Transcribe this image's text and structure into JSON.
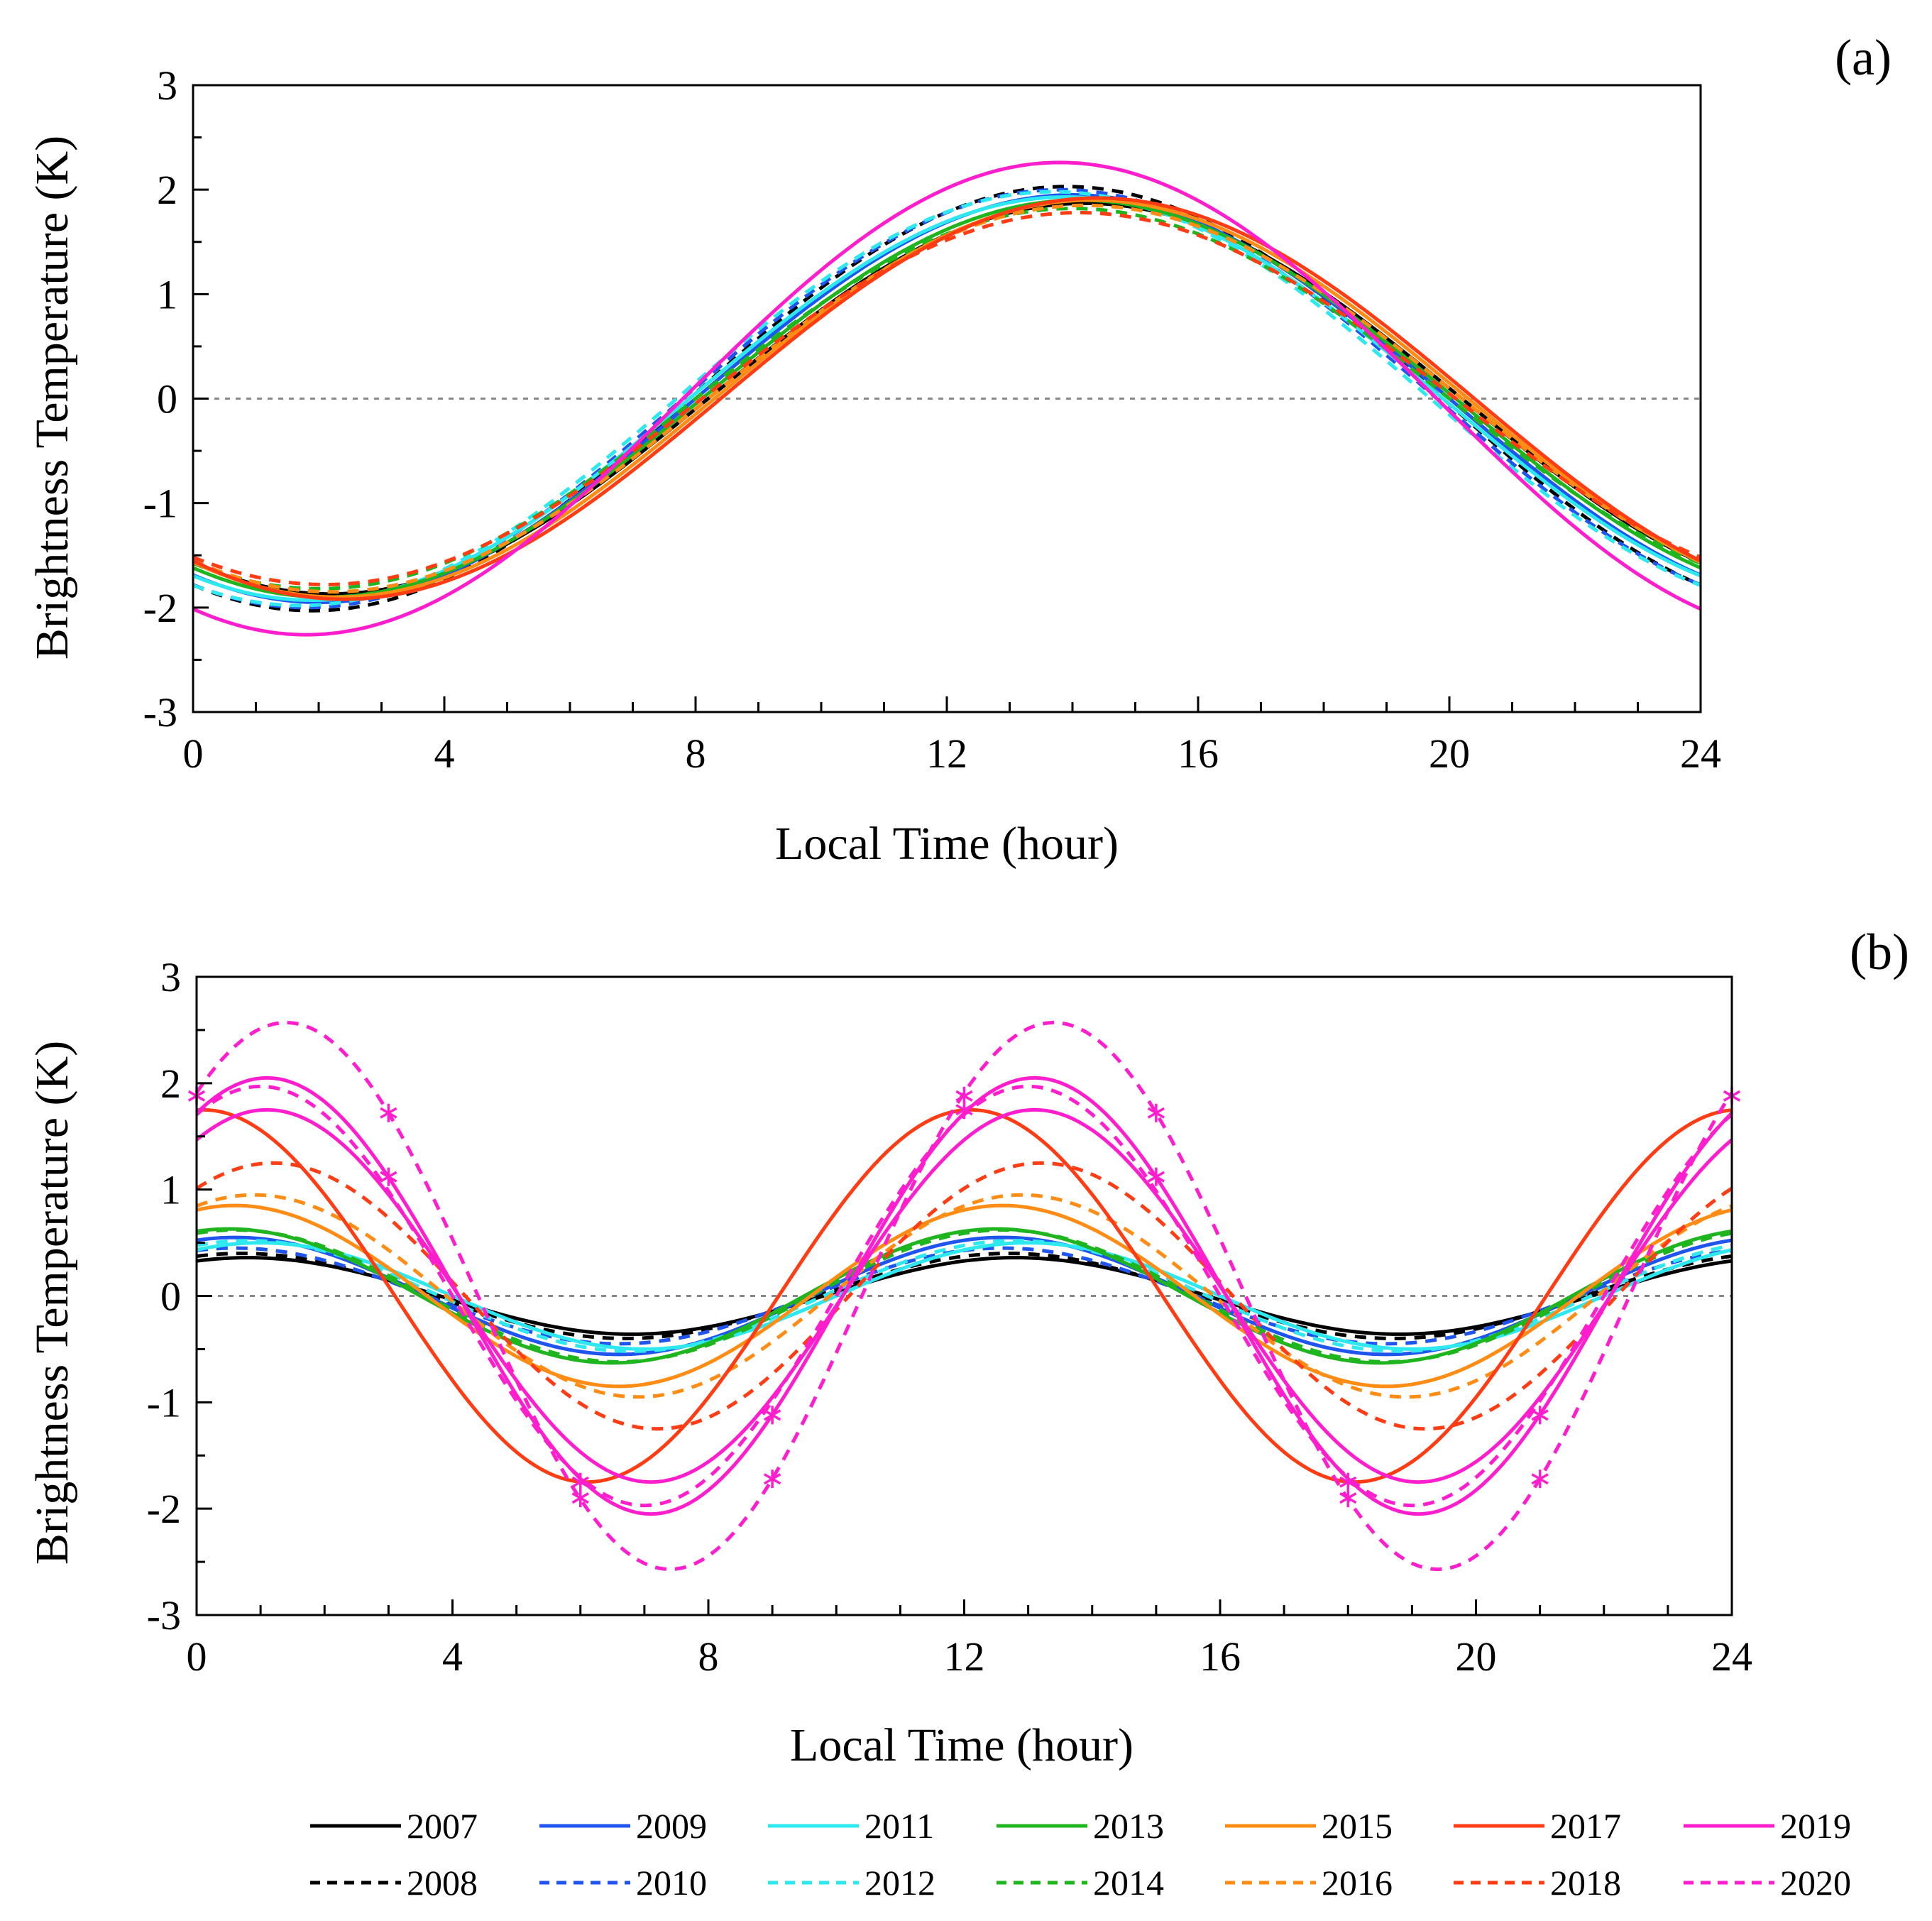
{
  "figure": {
    "legend": {
      "columns": 7,
      "entries": [
        {
          "label": "2007",
          "color": "#000000",
          "dash": false
        },
        {
          "label": "2009",
          "color": "#1f55ee",
          "dash": false
        },
        {
          "label": "2011",
          "color": "#2ee8f0",
          "dash": false
        },
        {
          "label": "2013",
          "color": "#1eb51e",
          "dash": false
        },
        {
          "label": "2015",
          "color": "#ff8c14",
          "dash": false
        },
        {
          "label": "2017",
          "color": "#ff3c14",
          "dash": false
        },
        {
          "label": "2019",
          "color": "#ff1ecd",
          "dash": false
        },
        {
          "label": "2008",
          "color": "#000000",
          "dash": true
        },
        {
          "label": "2010",
          "color": "#1f55ee",
          "dash": true
        },
        {
          "label": "2012",
          "color": "#2ee8f0",
          "dash": true
        },
        {
          "label": "2014",
          "color": "#1eb51e",
          "dash": true
        },
        {
          "label": "2016",
          "color": "#ff8c14",
          "dash": true
        },
        {
          "label": "2018",
          "color": "#ff3c14",
          "dash": true
        },
        {
          "label": "2020",
          "color": "#ff1ecd",
          "dash": true
        }
      ]
    }
  },
  "chart_data": [
    {
      "type": "line",
      "panel_label": "(a)",
      "title": "",
      "xlabel": "Local Time (hour)",
      "ylabel": "Brightness Temperature (K)",
      "xlim": [
        0,
        24
      ],
      "ylim": [
        -3,
        3
      ],
      "xticks": [
        0,
        4,
        8,
        12,
        16,
        20,
        24
      ],
      "yticks": [
        3,
        2,
        1,
        0,
        -1,
        -2,
        -3
      ],
      "reference_line": {
        "y": 0,
        "style": "dotted",
        "color": "#888888"
      },
      "model": "diurnal harmonic: value = amplitude * cos(2*pi*(t - peak_hour)/24)",
      "series": [
        {
          "name": "2007",
          "color": "#000000",
          "dash": false,
          "amplitude": 1.87,
          "peak_hour": 14.2
        },
        {
          "name": "2008",
          "color": "#000000",
          "dash": true,
          "amplitude": 2.03,
          "peak_hour": 13.9
        },
        {
          "name": "2009",
          "color": "#1f55ee",
          "dash": false,
          "amplitude": 1.95,
          "peak_hour": 14.0
        },
        {
          "name": "2010",
          "color": "#1f55ee",
          "dash": true,
          "amplitude": 2.0,
          "peak_hour": 13.8
        },
        {
          "name": "2011",
          "color": "#2ee8f0",
          "dash": false,
          "amplitude": 1.93,
          "peak_hour": 13.9
        },
        {
          "name": "2012",
          "color": "#2ee8f0",
          "dash": true,
          "amplitude": 1.98,
          "peak_hour": 13.7
        },
        {
          "name": "2013",
          "color": "#1eb51e",
          "dash": false,
          "amplitude": 1.9,
          "peak_hour": 14.1
        },
        {
          "name": "2014",
          "color": "#1eb51e",
          "dash": true,
          "amplitude": 1.82,
          "peak_hour": 14.0
        },
        {
          "name": "2015",
          "color": "#ff8c14",
          "dash": false,
          "amplitude": 1.9,
          "peak_hour": 14.3
        },
        {
          "name": "2016",
          "color": "#ff8c14",
          "dash": true,
          "amplitude": 1.85,
          "peak_hour": 14.2
        },
        {
          "name": "2017",
          "color": "#ff3c14",
          "dash": false,
          "amplitude": 1.92,
          "peak_hour": 14.4
        },
        {
          "name": "2018",
          "color": "#ff3c14",
          "dash": true,
          "amplitude": 1.78,
          "peak_hour": 14.1
        },
        {
          "name": "2019",
          "color": "#ff1ecd",
          "dash": false,
          "amplitude": 2.26,
          "peak_hour": 13.8
        }
      ]
    },
    {
      "type": "line",
      "panel_label": "(b)",
      "title": "",
      "xlabel": "Local Time (hour)",
      "ylabel": "Brightness Temperature (K)",
      "xlim": [
        0,
        24
      ],
      "ylim": [
        -3,
        3
      ],
      "xticks": [
        0,
        4,
        8,
        12,
        16,
        20,
        24
      ],
      "yticks": [
        3,
        2,
        1,
        0,
        -1,
        -2,
        -3
      ],
      "reference_line": {
        "y": 0,
        "style": "dotted",
        "color": "#888888"
      },
      "model": "semidiurnal harmonic: value = amplitude * cos(2*pi*(t - peak_hour)/12)",
      "series": [
        {
          "name": "2007",
          "color": "#000000",
          "dash": false,
          "amplitude": 0.36,
          "peak_hour": 0.8
        },
        {
          "name": "2008",
          "color": "#000000",
          "dash": true,
          "amplitude": 0.4,
          "peak_hour": 0.7
        },
        {
          "name": "2009",
          "color": "#1f55ee",
          "dash": false,
          "amplitude": 0.55,
          "peak_hour": 0.6
        },
        {
          "name": "2010",
          "color": "#1f55ee",
          "dash": true,
          "amplitude": 0.45,
          "peak_hour": 0.6
        },
        {
          "name": "2011",
          "color": "#2ee8f0",
          "dash": false,
          "amplitude": 0.5,
          "peak_hour": 1.0
        },
        {
          "name": "2012",
          "color": "#2ee8f0",
          "dash": true,
          "amplitude": 0.52,
          "peak_hour": 0.8
        },
        {
          "name": "2013",
          "color": "#1eb51e",
          "dash": false,
          "amplitude": 0.63,
          "peak_hour": 0.5
        },
        {
          "name": "2014",
          "color": "#1eb51e",
          "dash": true,
          "amplitude": 0.62,
          "peak_hour": 0.6
        },
        {
          "name": "2015",
          "color": "#ff8c14",
          "dash": false,
          "amplitude": 0.85,
          "peak_hour": 0.6
        },
        {
          "name": "2016",
          "color": "#ff8c14",
          "dash": true,
          "amplitude": 0.95,
          "peak_hour": 0.9
        },
        {
          "name": "2017",
          "color": "#ff3c14",
          "dash": false,
          "amplitude": 1.75,
          "peak_hour": 0.1
        },
        {
          "name": "2018",
          "color": "#ff3c14",
          "dash": true,
          "amplitude": 1.25,
          "peak_hour": 1.2
        },
        {
          "name": "2019",
          "color": "#ff1ecd",
          "dash": false,
          "amplitude": 1.75,
          "peak_hour": 1.1
        },
        {
          "name": "2019 (second trace)",
          "color": "#ff1ecd",
          "dash": false,
          "amplitude": 2.05,
          "peak_hour": 1.1
        },
        {
          "name": "2020",
          "color": "#ff1ecd",
          "dash": true,
          "amplitude": 1.97,
          "peak_hour": 1.0
        },
        {
          "name": "2020 (second trace)",
          "color": "#ff1ecd",
          "dash": true,
          "amplitude": 2.57,
          "peak_hour": 1.4
        }
      ],
      "markers": {
        "symbol": "asterisk",
        "color": "#ff1ecd",
        "points": [
          {
            "x": 0,
            "y": 1.88
          },
          {
            "x": 3,
            "y": 1.72
          },
          {
            "x": 3,
            "y": 1.12
          },
          {
            "x": 6,
            "y": -1.75
          },
          {
            "x": 6,
            "y": -1.9
          },
          {
            "x": 9,
            "y": -1.12
          },
          {
            "x": 9,
            "y": -1.72
          },
          {
            "x": 12,
            "y": 1.88
          },
          {
            "x": 12,
            "y": 1.75
          },
          {
            "x": 15,
            "y": 1.72
          },
          {
            "x": 15,
            "y": 1.12
          },
          {
            "x": 18,
            "y": -1.75
          },
          {
            "x": 18,
            "y": -1.9
          },
          {
            "x": 21,
            "y": -1.12
          },
          {
            "x": 21,
            "y": -1.72
          },
          {
            "x": 24,
            "y": 1.88
          }
        ]
      }
    }
  ]
}
